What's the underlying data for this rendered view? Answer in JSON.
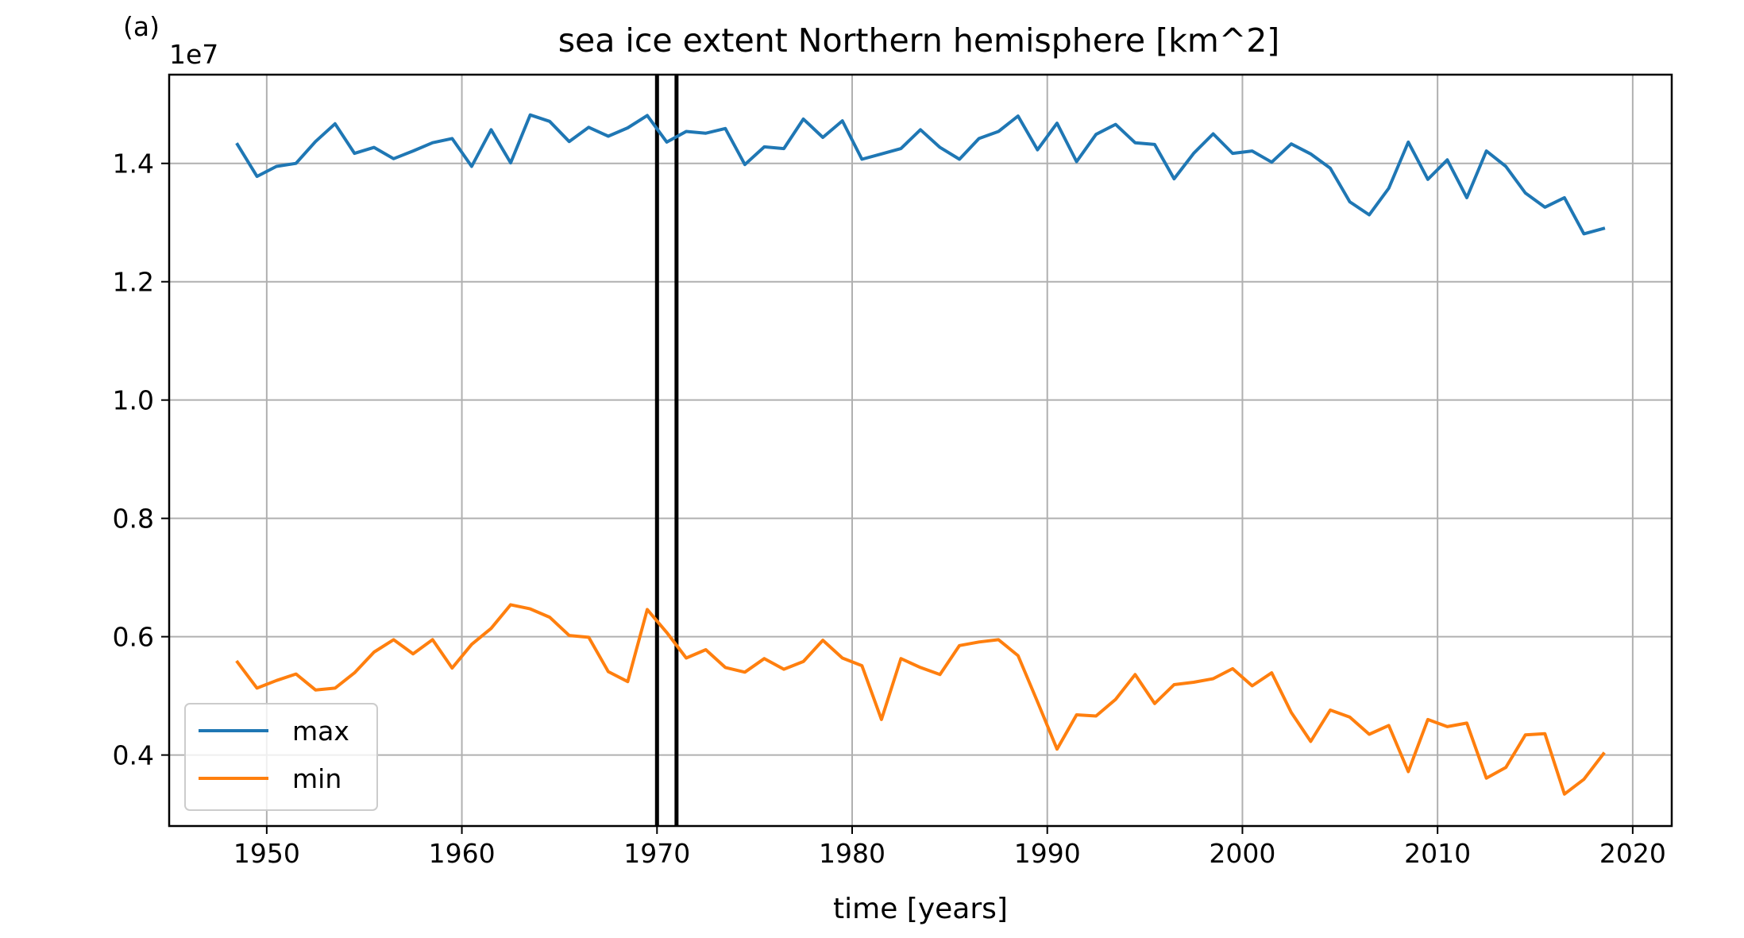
{
  "chart_data": {
    "type": "line",
    "panel_label": "(a)",
    "title": "sea ice extent Northern hemisphere [km^2]",
    "xlabel": "time [years]",
    "ylabel": "",
    "y_offset_label": "1e7",
    "y_scale_factor": 10000000,
    "xlim": [
      1945,
      2022
    ],
    "ylim": [
      0.28,
      1.55
    ],
    "x_ticks": [
      1950,
      1960,
      1970,
      1980,
      1990,
      2000,
      2010,
      2020
    ],
    "x_tick_labels": [
      "1950",
      "1960",
      "1970",
      "1980",
      "1990",
      "2000",
      "2010",
      "2020"
    ],
    "y_ticks": [
      0.4,
      0.6,
      0.8,
      1.0,
      1.2,
      1.4
    ],
    "y_tick_labels": [
      "0.4",
      "0.6",
      "0.8",
      "1.0",
      "1.2",
      "1.4"
    ],
    "grid": true,
    "legend_position": "lower-left",
    "vertical_lines": [
      1970,
      1971
    ],
    "vertical_line_color": "#000000",
    "x": [
      1948.5,
      1949.5,
      1950.5,
      1951.5,
      1952.5,
      1953.5,
      1954.5,
      1955.5,
      1956.5,
      1957.5,
      1958.5,
      1959.5,
      1960.5,
      1961.5,
      1962.5,
      1963.5,
      1964.5,
      1965.5,
      1966.5,
      1967.5,
      1968.5,
      1969.5,
      1970.5,
      1971.5,
      1972.5,
      1973.5,
      1974.5,
      1975.5,
      1976.5,
      1977.5,
      1978.5,
      1979.5,
      1980.5,
      1981.5,
      1982.5,
      1983.5,
      1984.5,
      1985.5,
      1986.5,
      1987.5,
      1988.5,
      1989.5,
      1990.5,
      1991.5,
      1992.5,
      1993.5,
      1994.5,
      1995.5,
      1996.5,
      1997.5,
      1998.5,
      1999.5,
      2000.5,
      2001.5,
      2002.5,
      2003.5,
      2004.5,
      2005.5,
      2006.5,
      2007.5,
      2008.5,
      2009.5,
      2010.5,
      2011.5,
      2012.5,
      2013.5,
      2014.5,
      2015.5,
      2016.5,
      2017.5,
      2018.5
    ],
    "series": [
      {
        "name": "max",
        "color": "#1f77b4",
        "values": [
          1.432,
          1.378,
          1.395,
          1.4,
          1.437,
          1.467,
          1.417,
          1.427,
          1.408,
          1.421,
          1.435,
          1.442,
          1.395,
          1.457,
          1.401,
          1.482,
          1.471,
          1.437,
          1.461,
          1.446,
          1.46,
          1.481,
          1.436,
          1.454,
          1.451,
          1.459,
          1.398,
          1.428,
          1.425,
          1.475,
          1.444,
          1.472,
          1.407,
          1.416,
          1.425,
          1.457,
          1.427,
          1.407,
          1.442,
          1.454,
          1.48,
          1.423,
          1.468,
          1.403,
          1.449,
          1.466,
          1.435,
          1.432,
          1.374,
          1.417,
          1.45,
          1.417,
          1.421,
          1.402,
          1.433,
          1.416,
          1.392,
          1.335,
          1.313,
          1.358,
          1.436,
          1.373,
          1.406,
          1.342,
          1.421,
          1.395,
          1.35,
          1.326,
          1.342,
          1.281,
          1.29
        ]
      },
      {
        "name": "min",
        "color": "#ff7f0e",
        "values": [
          0.557,
          0.513,
          0.526,
          0.537,
          0.51,
          0.513,
          0.539,
          0.574,
          0.595,
          0.571,
          0.595,
          0.547,
          0.587,
          0.614,
          0.654,
          0.647,
          0.633,
          0.602,
          0.599,
          0.541,
          0.524,
          0.646,
          0.607,
          0.564,
          0.578,
          0.548,
          0.54,
          0.563,
          0.545,
          0.558,
          0.594,
          0.564,
          0.551,
          0.46,
          0.563,
          0.548,
          0.536,
          0.585,
          0.591,
          0.595,
          0.568,
          0.49,
          0.41,
          0.468,
          0.466,
          0.494,
          0.536,
          0.487,
          0.519,
          0.523,
          0.529,
          0.546,
          0.517,
          0.539,
          0.472,
          0.423,
          0.476,
          0.464,
          0.435,
          0.45,
          0.372,
          0.46,
          0.448,
          0.454,
          0.361,
          0.379,
          0.434,
          0.436,
          0.334,
          0.359,
          0.402
        ]
      }
    ]
  }
}
